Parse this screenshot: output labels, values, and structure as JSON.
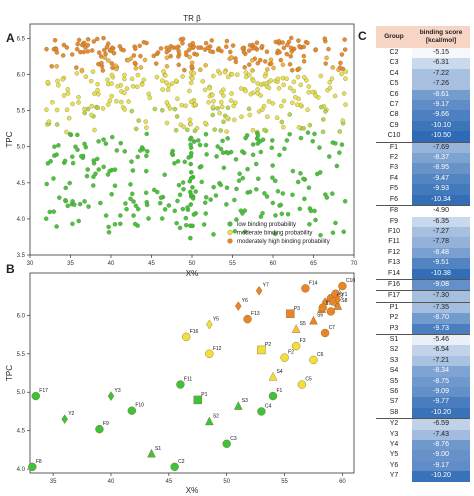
{
  "panel_labels": {
    "a": "A",
    "b": "B",
    "c": "C"
  },
  "chart_data": [
    {
      "type": "scatter",
      "title": "TR β",
      "xlabel": "X%",
      "ylabel": "TPC",
      "xlim": [
        30,
        70
      ],
      "ylim": [
        3.5,
        6.7
      ],
      "xticks": [
        30,
        35,
        40,
        45,
        50,
        55,
        60,
        65,
        70
      ],
      "yticks": [
        3.5,
        4.0,
        4.5,
        5.0,
        5.5,
        6.0,
        6.5
      ],
      "grid": false,
      "legend_position": "bottom-right",
      "series": [
        {
          "name": "low binding probability",
          "color": "#3cc23c"
        },
        {
          "name": "moderate binding probability",
          "color": "#e4e050"
        },
        {
          "name": "moderately high binding probability",
          "color": "#e8842a"
        }
      ]
    },
    {
      "type": "scatter",
      "xlabel": "X%",
      "ylabel": "TPC",
      "xlim": [
        33,
        61
      ],
      "ylim": [
        3.95,
        6.55
      ],
      "xticks": [
        35,
        40,
        45,
        50,
        55,
        60
      ],
      "yticks": [
        4.0,
        4.5,
        5.0,
        5.5,
        6.0
      ],
      "points": [
        {
          "label": "F8",
          "x": 33.2,
          "y": 4.03,
          "shape": "circle",
          "color": "#3cc23c"
        },
        {
          "label": "F17",
          "x": 33.5,
          "y": 4.95,
          "shape": "circle",
          "color": "#3cc23c"
        },
        {
          "label": "Y2",
          "x": 36.0,
          "y": 4.65,
          "shape": "diamond",
          "color": "#3cc23c"
        },
        {
          "label": "F9",
          "x": 39.0,
          "y": 4.52,
          "shape": "circle",
          "color": "#3cc23c"
        },
        {
          "label": "Y3",
          "x": 40.0,
          "y": 4.95,
          "shape": "diamond",
          "color": "#3cc23c"
        },
        {
          "label": "F10",
          "x": 41.8,
          "y": 4.76,
          "shape": "circle",
          "color": "#3cc23c"
        },
        {
          "label": "S1",
          "x": 43.5,
          "y": 4.2,
          "shape": "triangle",
          "color": "#3cc23c"
        },
        {
          "label": "C2",
          "x": 45.5,
          "y": 4.03,
          "shape": "circle",
          "color": "#3cc23c"
        },
        {
          "label": "F11",
          "x": 46.0,
          "y": 5.1,
          "shape": "circle",
          "color": "#3cc23c"
        },
        {
          "label": "P1",
          "x": 47.5,
          "y": 4.9,
          "shape": "square",
          "color": "#3cc23c"
        },
        {
          "label": "S2",
          "x": 48.5,
          "y": 4.62,
          "shape": "triangle",
          "color": "#3cc23c"
        },
        {
          "label": "C3",
          "x": 50.0,
          "y": 4.33,
          "shape": "circle",
          "color": "#3cc23c"
        },
        {
          "label": "S3",
          "x": 51.0,
          "y": 4.82,
          "shape": "triangle",
          "color": "#3cc23c"
        },
        {
          "label": "C4",
          "x": 53.0,
          "y": 4.75,
          "shape": "circle",
          "color": "#3cc23c"
        },
        {
          "label": "F1",
          "x": 54.0,
          "y": 4.95,
          "shape": "circle",
          "color": "#3cc23c"
        },
        {
          "label": "F16",
          "x": 46.5,
          "y": 5.72,
          "shape": "circle",
          "color": "#f2df3c"
        },
        {
          "label": "Y5",
          "x": 48.5,
          "y": 5.88,
          "shape": "diamond",
          "color": "#f2df3c"
        },
        {
          "label": "F12",
          "x": 48.5,
          "y": 5.5,
          "shape": "circle",
          "color": "#f2df3c"
        },
        {
          "label": "P2",
          "x": 53.0,
          "y": 5.55,
          "shape": "square",
          "color": "#f2df3c"
        },
        {
          "label": "S4",
          "x": 54.0,
          "y": 5.2,
          "shape": "triangle",
          "color": "#f2df3c"
        },
        {
          "label": "F2",
          "x": 55.0,
          "y": 5.45,
          "shape": "circle",
          "color": "#f2df3c"
        },
        {
          "label": "F3",
          "x": 56.0,
          "y": 5.6,
          "shape": "circle",
          "color": "#f2df3c"
        },
        {
          "label": "C5",
          "x": 56.5,
          "y": 5.1,
          "shape": "circle",
          "color": "#f2df3c"
        },
        {
          "label": "C6",
          "x": 57.5,
          "y": 5.42,
          "shape": "circle",
          "color": "#f2df3c"
        },
        {
          "label": "S5",
          "x": 56.0,
          "y": 5.82,
          "shape": "triangle",
          "color": "#f7c340"
        },
        {
          "label": "Y6",
          "x": 51.0,
          "y": 6.12,
          "shape": "diamond",
          "color": "#e8842a"
        },
        {
          "label": "F13",
          "x": 51.8,
          "y": 5.95,
          "shape": "circle",
          "color": "#e8842a"
        },
        {
          "label": "Y7",
          "x": 52.8,
          "y": 6.32,
          "shape": "diamond",
          "color": "#e8842a"
        },
        {
          "label": "P3",
          "x": 55.5,
          "y": 6.02,
          "shape": "square",
          "color": "#e8842a"
        },
        {
          "label": "F14",
          "x": 56.8,
          "y": 6.35,
          "shape": "circle",
          "color": "#e8842a"
        },
        {
          "label": "C7",
          "x": 58.5,
          "y": 5.77,
          "shape": "circle",
          "color": "#e8842a"
        },
        {
          "label": "S6",
          "x": 57.5,
          "y": 5.93,
          "shape": "triangle",
          "color": "#e8842a"
        },
        {
          "label": "S7",
          "x": 58.2,
          "y": 6.08,
          "shape": "triangle",
          "color": "#e8842a"
        },
        {
          "label": "Y4",
          "x": 58.5,
          "y": 6.17,
          "shape": "diamond",
          "color": "#e8842a"
        },
        {
          "label": "F5",
          "x": 58.3,
          "y": 6.1,
          "shape": "circle",
          "color": "#e8842a"
        },
        {
          "label": "C9",
          "x": 59.0,
          "y": 6.22,
          "shape": "circle",
          "color": "#e8842a"
        },
        {
          "label": "F6",
          "x": 59.4,
          "y": 6.28,
          "shape": "circle",
          "color": "#e8842a"
        },
        {
          "label": "F4",
          "x": 59.0,
          "y": 6.05,
          "shape": "circle",
          "color": "#e8842a"
        },
        {
          "label": "C8",
          "x": 59.2,
          "y": 6.18,
          "shape": "circle",
          "color": "#e8842a"
        },
        {
          "label": "S8",
          "x": 59.6,
          "y": 6.12,
          "shape": "triangle",
          "color": "#e8842a"
        },
        {
          "label": "Y1",
          "x": 59.6,
          "y": 6.2,
          "shape": "diamond",
          "color": "#e8842a"
        },
        {
          "label": "C10",
          "x": 60.0,
          "y": 6.38,
          "shape": "circle",
          "color": "#e8842a"
        }
      ]
    },
    {
      "type": "table",
      "headers": [
        "Group",
        "binding score [kcal/mol]"
      ],
      "rows": [
        [
          "C2",
          "-5.15"
        ],
        [
          "C3",
          "-6.31"
        ],
        [
          "C4",
          "-7.22"
        ],
        [
          "C5",
          "-7.26"
        ],
        [
          "C6",
          "-8.61"
        ],
        [
          "C7",
          "-9.17"
        ],
        [
          "C8",
          "-9.66"
        ],
        [
          "C9",
          "-10.10"
        ],
        [
          "C10",
          "-10.50"
        ],
        [
          "F1",
          "-7.69"
        ],
        [
          "F2",
          "-8.37"
        ],
        [
          "F3",
          "-8.95"
        ],
        [
          "F4",
          "-9.47"
        ],
        [
          "F5",
          "-9.93"
        ],
        [
          "F6",
          "-10.34"
        ],
        [
          "F8",
          "-4.90"
        ],
        [
          "F9",
          "-6.35"
        ],
        [
          "F10",
          "-7.27"
        ],
        [
          "F11",
          "-7.78"
        ],
        [
          "F12",
          "-8.48"
        ],
        [
          "F13",
          "-9.51"
        ],
        [
          "F14",
          "-10.38"
        ],
        [
          "F16",
          "-9.08"
        ],
        [
          "F17",
          "-7.30"
        ],
        [
          "P1",
          "-7.35"
        ],
        [
          "P2",
          "-8.70"
        ],
        [
          "P3",
          "-9.73"
        ],
        [
          "S1",
          "-5.46"
        ],
        [
          "S2",
          "-6.54"
        ],
        [
          "S3",
          "-7.21"
        ],
        [
          "S4",
          "-8.34"
        ],
        [
          "S5",
          "-8.75"
        ],
        [
          "S6",
          "-9.09"
        ],
        [
          "S7",
          "-9.77"
        ],
        [
          "S8",
          "-10.20"
        ],
        [
          "Y2",
          "-6.59"
        ],
        [
          "Y3",
          "-7.43"
        ],
        [
          "Y4",
          "-8.76"
        ],
        [
          "Y5",
          "-9.00"
        ],
        [
          "Y6",
          "-9.17"
        ],
        [
          "Y7",
          "-10.20"
        ]
      ],
      "group_starts": [
        9,
        15,
        22,
        23,
        24,
        27,
        35
      ],
      "score_range": [
        -4.9,
        -10.5
      ],
      "color_low": "#ffffff",
      "color_high": "#2e6ab5"
    }
  ]
}
